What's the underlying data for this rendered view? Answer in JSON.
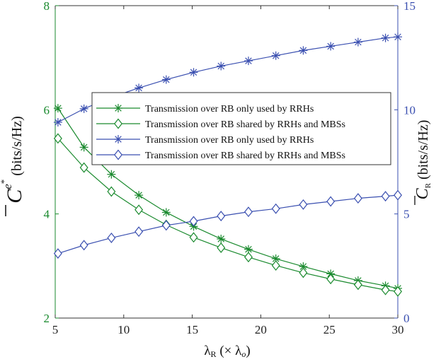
{
  "chart_data": {
    "type": "line",
    "x": [
      5.2,
      7.1,
      9.1,
      11.1,
      13.1,
      15.1,
      17.1,
      19.1,
      21.1,
      23.1,
      25.1,
      27.1,
      29.1,
      30
    ],
    "xlim": [
      5,
      30
    ],
    "xticks": [
      "5",
      "10",
      "15",
      "20",
      "25",
      "30"
    ],
    "xlabel": {
      "main": "λ",
      "sub": "R",
      "paren_open": " (× λ",
      "sub2": "o",
      "paren_close": ")"
    },
    "left_axis": {
      "ylim": [
        2,
        8
      ],
      "yticks": [
        "2",
        "4",
        "6",
        "8"
      ],
      "label": {
        "symbol": "C",
        "sup": "e",
        "sup2": "*",
        "unit": " (bits/s/Hz)"
      },
      "color": "#1a8a2e"
    },
    "right_axis": {
      "ylim": [
        0,
        15
      ],
      "yticks": [
        "0",
        "5",
        "10",
        "15"
      ],
      "label": {
        "symbol": "C",
        "sub": "R",
        "unit": " (bits/s/Hz)"
      },
      "color": "#3a4fb0"
    },
    "series": [
      {
        "name": "Transmission over RB only used by RRHs",
        "axis": "left",
        "marker": "star",
        "color": "#1a8a2e",
        "values": [
          6.03,
          5.28,
          4.76,
          4.36,
          4.03,
          3.76,
          3.52,
          3.32,
          3.14,
          2.99,
          2.85,
          2.72,
          2.62,
          2.57
        ]
      },
      {
        "name": "Transmission over RB shared by RRHs and MBSs",
        "axis": "left",
        "marker": "diamond",
        "color": "#1a8a2e",
        "values": [
          5.45,
          4.89,
          4.43,
          4.08,
          3.79,
          3.55,
          3.35,
          3.17,
          3.01,
          2.87,
          2.75,
          2.64,
          2.54,
          2.51
        ]
      },
      {
        "name": "Transmission over RB only used by RRHs",
        "axis": "right",
        "marker": "star",
        "color": "#3a4fb0",
        "values": [
          9.4,
          10.05,
          10.6,
          11.05,
          11.45,
          11.8,
          12.1,
          12.35,
          12.6,
          12.85,
          13.05,
          13.25,
          13.45,
          13.5
        ]
      },
      {
        "name": "Transmission over RB shared by RRHs and MBSs",
        "axis": "right",
        "marker": "diamond",
        "color": "#3a4fb0",
        "values": [
          3.1,
          3.5,
          3.85,
          4.15,
          4.45,
          4.65,
          4.9,
          5.1,
          5.25,
          5.45,
          5.6,
          5.75,
          5.85,
          5.9
        ]
      }
    ],
    "legend": "center-right inside plot",
    "grid": false
  }
}
